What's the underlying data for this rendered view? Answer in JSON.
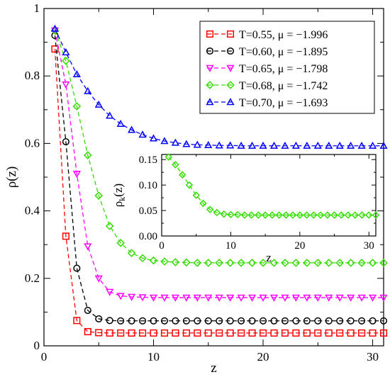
{
  "chart_data": [
    {
      "type": "line",
      "xlabel": "z",
      "ylabel": "ρ(z)",
      "xlim": [
        0,
        31
      ],
      "ylim": [
        0,
        1
      ],
      "xticks": [
        0,
        10,
        20,
        30
      ],
      "yticks": [
        0,
        0.2,
        0.4,
        0.6,
        0.8,
        1
      ],
      "xtick_labels": [
        "0",
        "10",
        "20",
        "30"
      ],
      "ytick_labels": [
        "0",
        "0.2",
        "0.4",
        "0.6",
        "0.8",
        "1"
      ],
      "legend_position": "top-right",
      "grid": false,
      "series": [
        {
          "name": "T=0.55, μ = −1.996",
          "color": "#ff0000",
          "marker": "square",
          "x": [
            1,
            2,
            3,
            4,
            5,
            6,
            7,
            8,
            9,
            10,
            11,
            12,
            13,
            14,
            15,
            16,
            17,
            18,
            19,
            20,
            21,
            22,
            23,
            24,
            25,
            26,
            27,
            28,
            29,
            30,
            31
          ],
          "y": [
            0.88,
            0.325,
            0.075,
            0.042,
            0.039,
            0.038,
            0.038,
            0.038,
            0.038,
            0.038,
            0.038,
            0.038,
            0.038,
            0.038,
            0.038,
            0.038,
            0.038,
            0.038,
            0.038,
            0.038,
            0.038,
            0.038,
            0.038,
            0.038,
            0.038,
            0.038,
            0.038,
            0.038,
            0.038,
            0.038,
            0.038
          ]
        },
        {
          "name": "T=0.60, μ = −1.895",
          "color": "#000000",
          "marker": "circle",
          "x": [
            1,
            2,
            3,
            4,
            5,
            6,
            7,
            8,
            9,
            10,
            11,
            12,
            13,
            14,
            15,
            16,
            17,
            18,
            19,
            20,
            21,
            22,
            23,
            24,
            25,
            26,
            27,
            28,
            29,
            30,
            31
          ],
          "y": [
            0.92,
            0.605,
            0.23,
            0.105,
            0.08,
            0.075,
            0.074,
            0.074,
            0.074,
            0.074,
            0.074,
            0.074,
            0.074,
            0.074,
            0.074,
            0.074,
            0.074,
            0.074,
            0.074,
            0.074,
            0.074,
            0.074,
            0.074,
            0.074,
            0.074,
            0.074,
            0.074,
            0.074,
            0.074,
            0.074,
            0.074
          ]
        },
        {
          "name": "T=0.65, μ = −1.798",
          "color": "#ff00ff",
          "marker": "triangle-down",
          "x": [
            1,
            2,
            3,
            4,
            5,
            6,
            7,
            8,
            9,
            10,
            11,
            12,
            13,
            14,
            15,
            16,
            17,
            18,
            19,
            20,
            21,
            22,
            23,
            24,
            25,
            26,
            27,
            28,
            29,
            30,
            31
          ],
          "y": [
            0.935,
            0.775,
            0.51,
            0.295,
            0.2,
            0.16,
            0.148,
            0.145,
            0.144,
            0.143,
            0.143,
            0.143,
            0.143,
            0.143,
            0.143,
            0.143,
            0.143,
            0.143,
            0.143,
            0.143,
            0.143,
            0.143,
            0.143,
            0.143,
            0.143,
            0.143,
            0.143,
            0.143,
            0.143,
            0.143,
            0.143
          ]
        },
        {
          "name": "T=0.68, μ = −1.742",
          "color": "#33dd00",
          "marker": "diamond",
          "x": [
            1,
            2,
            3,
            4,
            5,
            6,
            7,
            8,
            9,
            10,
            11,
            12,
            13,
            14,
            15,
            16,
            17,
            18,
            19,
            20,
            21,
            22,
            23,
            24,
            25,
            26,
            27,
            28,
            29,
            30,
            31
          ],
          "y": [
            0.935,
            0.845,
            0.71,
            0.565,
            0.445,
            0.355,
            0.305,
            0.275,
            0.26,
            0.253,
            0.25,
            0.248,
            0.247,
            0.246,
            0.246,
            0.246,
            0.246,
            0.246,
            0.246,
            0.246,
            0.246,
            0.246,
            0.246,
            0.246,
            0.246,
            0.246,
            0.246,
            0.246,
            0.246,
            0.246,
            0.246
          ]
        },
        {
          "name": "T=0.70, μ = −1.693",
          "color": "#0000ff",
          "marker": "triangle-up",
          "x": [
            1,
            2,
            3,
            4,
            5,
            6,
            7,
            8,
            9,
            10,
            11,
            12,
            13,
            14,
            15,
            16,
            17,
            18,
            19,
            20,
            21,
            22,
            23,
            24,
            25,
            26,
            27,
            28,
            29,
            30,
            31
          ],
          "y": [
            0.94,
            0.87,
            0.805,
            0.755,
            0.715,
            0.682,
            0.658,
            0.64,
            0.626,
            0.615,
            0.607,
            0.602,
            0.598,
            0.596,
            0.595,
            0.594,
            0.594,
            0.593,
            0.593,
            0.593,
            0.593,
            0.593,
            0.593,
            0.593,
            0.593,
            0.593,
            0.593,
            0.593,
            0.593,
            0.593,
            0.593
          ]
        }
      ]
    },
    {
      "type": "line",
      "xlabel": "z",
      "ylabel": "ρ",
      "ylabel_subscript": "k",
      "ylabel_suffix": "(z)",
      "xlim": [
        0,
        31
      ],
      "ylim": [
        0,
        0.16
      ],
      "xticks": [
        0,
        10,
        20,
        30
      ],
      "yticks": [
        0,
        0.05,
        0.1,
        0.15
      ],
      "xtick_labels": [
        "0",
        "10",
        "20",
        "30"
      ],
      "ytick_labels": [
        "0.00",
        "0.05",
        "0.10",
        "0.15"
      ],
      "grid": false,
      "series": [
        {
          "color": "#33dd00",
          "marker": "diamond",
          "x": [
            1,
            2,
            3,
            4,
            5,
            6,
            7,
            8,
            9,
            10,
            11,
            12,
            13,
            14,
            15,
            16,
            17,
            18,
            19,
            20,
            21,
            22,
            23,
            24,
            25,
            26,
            27,
            28,
            29,
            30,
            31
          ],
          "y": [
            0.155,
            0.14,
            0.12,
            0.1,
            0.08,
            0.064,
            0.052,
            0.046,
            0.043,
            0.042,
            0.042,
            0.041,
            0.041,
            0.041,
            0.041,
            0.041,
            0.041,
            0.041,
            0.041,
            0.041,
            0.041,
            0.041,
            0.041,
            0.041,
            0.041,
            0.041,
            0.041,
            0.041,
            0.041,
            0.041,
            0.041
          ]
        }
      ]
    }
  ]
}
